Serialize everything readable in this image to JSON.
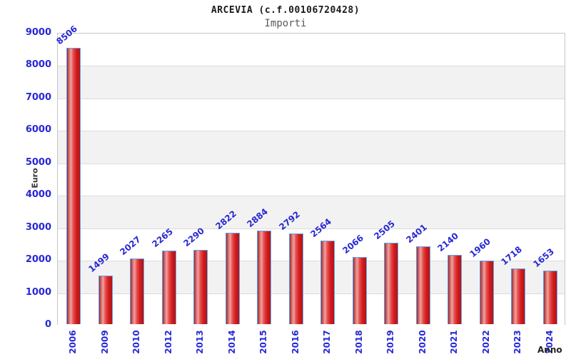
{
  "header": {
    "title": "ARCEVIA (c.f.00106720428)",
    "subtitle": "Importi"
  },
  "chart_data": {
    "type": "bar",
    "title": "ARCEVIA (c.f.00106720428)",
    "subtitle": "Importi",
    "xlabel": "Anno",
    "ylabel": "Euro",
    "categories": [
      "2006",
      "2009",
      "2010",
      "2012",
      "2013",
      "2014",
      "2015",
      "2016",
      "2017",
      "2018",
      "2019",
      "2020",
      "2021",
      "2022",
      "2023",
      "2024"
    ],
    "values": [
      8506,
      1499,
      2027,
      2265,
      2290,
      2822,
      2884,
      2792,
      2564,
      2066,
      2505,
      2401,
      2140,
      1960,
      1718,
      1653
    ],
    "ylim": [
      0,
      9000
    ],
    "y_tick_step": 1000,
    "grid": true,
    "legend": false,
    "band_colors": [
      "#ffffff",
      "#f2f2f2"
    ],
    "colors": {
      "bar_fill_dark": "#9c2a2a",
      "bar_fill_highlight": "#f2a0a0",
      "bar_fill_main": "#d31c1c",
      "bar_border": "#64a0e8",
      "tick_text": "#2828d4",
      "value_text": "#2828d4",
      "axis_title_text": "#333333",
      "grid_line": "#dcdcdc",
      "plot_border": "#c6c6c6"
    }
  }
}
